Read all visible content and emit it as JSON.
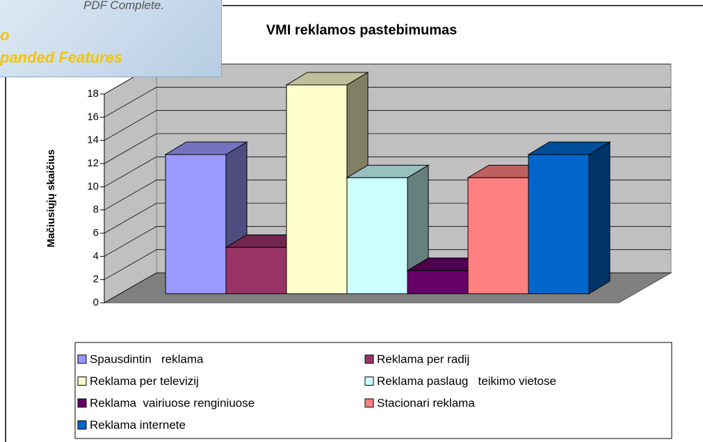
{
  "chart_data": {
    "type": "bar3d",
    "title": "VMI reklamos pastebimumas",
    "ylabel": "Mačiusiųjų skaičius",
    "ylim": [
      0,
      18
    ],
    "yticks": [
      0,
      2,
      4,
      6,
      8,
      10,
      12,
      14,
      16,
      18
    ],
    "grid": true,
    "series": [
      {
        "name": "Spausdintin   reklama",
        "color": "#9999ff",
        "values": [
          12
        ]
      },
      {
        "name": "Reklama per radij",
        "color": "#993366",
        "values": [
          4
        ]
      },
      {
        "name": "Reklama per televizij",
        "color": "#ffffcc",
        "values": [
          18
        ]
      },
      {
        "name": "Reklama paslaug   teikimo vietose",
        "color": "#ccffff",
        "values": [
          10
        ]
      },
      {
        "name": "Reklama  vairiuose renginiuose",
        "color": "#660066",
        "values": [
          2
        ]
      },
      {
        "name": "Stacionari reklama",
        "color": "#ff8080",
        "values": [
          10
        ]
      },
      {
        "name": "Reklama internete",
        "color": "#0066cc",
        "values": [
          12
        ]
      }
    ]
  },
  "watermark": {
    "line1": "PDF Complete.",
    "line2": "o",
    "line3": "panded Features"
  }
}
